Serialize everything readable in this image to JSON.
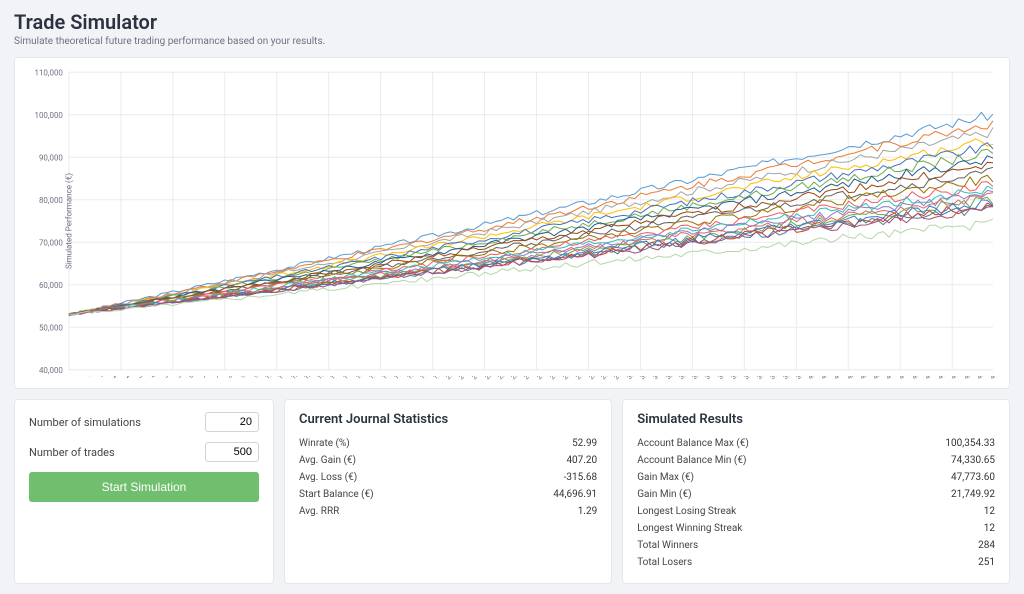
{
  "header": {
    "title": "Trade Simulator",
    "subtitle": "Simulate theoretical future trading performance based on your results."
  },
  "chart": {
    "type": "line",
    "y_axis_label": "Simulated Performance (€)",
    "ylim": [
      40000,
      110000
    ],
    "ytick_step": 10000,
    "xlim": [
      1,
      499
    ],
    "xtick_step": 7,
    "background_color": "#ffffff",
    "grid_color": "#e9ebef",
    "axis_color": "#cbd0d8",
    "tick_label_fontsize": 8,
    "line_width": 1,
    "start_value": 53000,
    "series_colors": [
      "#5b9bd5",
      "#ed7d31",
      "#a5a5a5",
      "#ffc000",
      "#4472c4",
      "#70ad47",
      "#255e91",
      "#9e480e",
      "#636363",
      "#997300",
      "#f45b69",
      "#2ec4b6",
      "#8e7cc3",
      "#e06666",
      "#6aa84f",
      "#3c78d8",
      "#cc4125",
      "#45818e",
      "#a64d79",
      "#b6d7a8"
    ],
    "series_end_values": [
      100000,
      98000,
      96000,
      94000,
      92500,
      91000,
      89500,
      88000,
      86500,
      85000,
      83500,
      82500,
      81500,
      80800,
      80000,
      79300,
      78700,
      78200,
      77800,
      74500
    ],
    "noise_amplitude": 1800
  },
  "controls": {
    "sim_count_label": "Number of simulations",
    "sim_count_value": "20",
    "trade_count_label": "Number of trades",
    "trade_count_value": "500",
    "start_button_label": "Start Simulation"
  },
  "journal_stats": {
    "heading": "Current Journal Statistics",
    "rows": [
      {
        "label": "Winrate (%)",
        "value": "52.99"
      },
      {
        "label": "Avg. Gain (€)",
        "value": "407.20"
      },
      {
        "label": "Avg. Loss (€)",
        "value": "-315.68"
      },
      {
        "label": "Start Balance (€)",
        "value": "44,696.91"
      },
      {
        "label": "Avg. RRR",
        "value": "1.29"
      }
    ]
  },
  "sim_results": {
    "heading": "Simulated Results",
    "rows": [
      {
        "label": "Account Balance Max (€)",
        "value": "100,354.33"
      },
      {
        "label": "Account Balance Min (€)",
        "value": "74,330.65"
      },
      {
        "label": "Gain Max (€)",
        "value": "47,773.60"
      },
      {
        "label": "Gain Min (€)",
        "value": "21,749.92"
      },
      {
        "label": "Longest Losing Streak",
        "value": "12"
      },
      {
        "label": "Longest Winning Streak",
        "value": "12"
      },
      {
        "label": "Total Winners",
        "value": "284"
      },
      {
        "label": "Total Losers",
        "value": "251"
      }
    ]
  }
}
